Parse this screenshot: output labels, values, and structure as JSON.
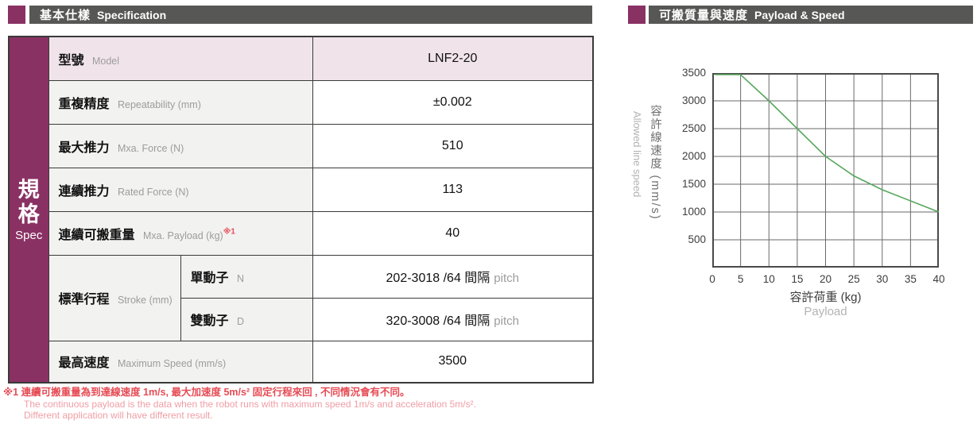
{
  "colors": {
    "purple": "#8a3164",
    "header_bar": "#575756",
    "model_row_pink": "#f0e4ea",
    "label_cell_gray": "#f2f2f1",
    "table_border": "#3a3a39",
    "footnote_red": "#e64b54",
    "footnote_light_red": "#f09da4",
    "chart_line_green": "#57a75d"
  },
  "left": {
    "header": {
      "cjk": "基本仕樣",
      "en": "Specification"
    },
    "sidebar": {
      "c1": "規",
      "c2": "格",
      "en": "Spec"
    },
    "table": {
      "rows": [
        {
          "cjk": "型號",
          "en": "Model",
          "value": "LNF2-20"
        },
        {
          "cjk": "重複精度",
          "en": "Repeatability (mm)",
          "value": "±0.002"
        },
        {
          "cjk": "最大推力",
          "en": "Mxa. Force (N)",
          "value": "510"
        },
        {
          "cjk": "連續推力",
          "en": "Rated Force (N)",
          "value": "113"
        },
        {
          "cjk": "連續可搬重量",
          "en": "Mxa. Payload (kg)",
          "sup": "※1",
          "value": "40"
        },
        {
          "cjk": "標準行程",
          "en": "Stroke (mm)",
          "sub_cjk": "單動子",
          "sub_en": "N",
          "value": "202-3018 /64 間隔",
          "suffix": "pitch"
        },
        {
          "sub_cjk": "雙動子",
          "sub_en": "D",
          "value": "320-3008 /64 間隔",
          "suffix": "pitch"
        },
        {
          "cjk": "最高速度",
          "en": "Maximum Speed (mm/s)",
          "value": "3500"
        }
      ]
    },
    "footnote": {
      "line1": "※1 連續可搬重量為到達線速度 1m/s, 最大加速度 5m/s² 固定行程來回 , 不同情況會有不同。",
      "line2": "The continuous payload is the data when the robot runs with maximum speed 1m/s and acceleration 5m/s².",
      "line3": "Different application will have different result."
    }
  },
  "right": {
    "header": {
      "cjk": "可搬質量與速度",
      "en": "Payload & Speed"
    }
  },
  "chart_data": {
    "type": "line",
    "title": "可搬質量與速度 Payload & Speed",
    "xlabel_cjk": "容許荷重 (kg)",
    "xlabel_en": "Payload",
    "ylabel_cjk": "容許線速度 (mm/s)",
    "ylabel_en": "Allowed line speed",
    "xlim": [
      0,
      40
    ],
    "ylim": [
      0,
      3500
    ],
    "x_ticks": [
      0,
      5,
      10,
      15,
      20,
      25,
      30,
      35,
      40
    ],
    "y_ticks": [
      500,
      1000,
      1500,
      2000,
      2500,
      3000,
      3500
    ],
    "grid": true,
    "legend": "none",
    "series": [
      {
        "name": "allowed-line-speed",
        "points": [
          [
            0.5,
            3500
          ],
          [
            5,
            3500
          ],
          [
            10,
            3000
          ],
          [
            15,
            2500
          ],
          [
            20,
            2000
          ],
          [
            25,
            1650
          ],
          [
            30,
            1400
          ],
          [
            35,
            1200
          ],
          [
            40,
            1000
          ]
        ]
      }
    ]
  }
}
